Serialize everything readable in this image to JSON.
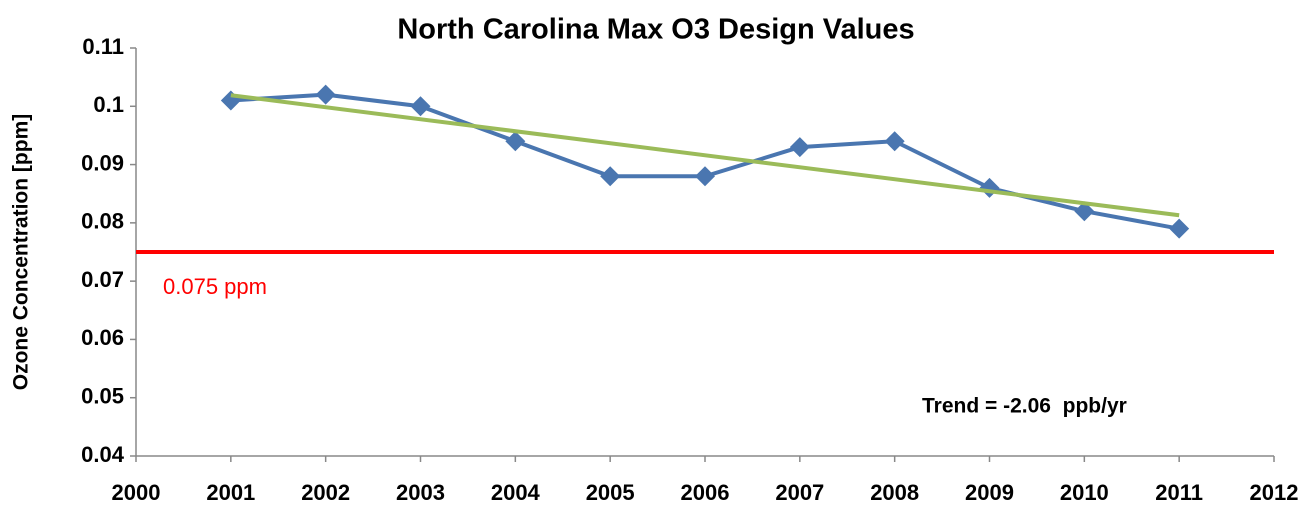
{
  "chart_data": {
    "type": "line",
    "title": "North Carolina Max O3 Design Values",
    "y_label": "Ozone Concentration [ppm]",
    "x": [
      2001,
      2002,
      2003,
      2004,
      2005,
      2006,
      2007,
      2008,
      2009,
      2010,
      2011
    ],
    "series": [
      {
        "color": "#4a76b0",
        "values": [
          0.101,
          0.102,
          0.1,
          0.094,
          0.088,
          0.088,
          0.093,
          0.094,
          0.086,
          0.082,
          0.079
        ]
      }
    ],
    "trend_line": {
      "color": "#9bbb59",
      "x": [
        2001,
        2011
      ],
      "values": [
        0.1019,
        0.0813
      ]
    },
    "reference_line": {
      "color": "#ff0000",
      "value": 0.075,
      "label": "0.075 ppm"
    },
    "annotation": "Trend = -2.06  ppb/yr",
    "xlim": [
      2000,
      2012
    ],
    "xticks": [
      2000,
      2001,
      2002,
      2003,
      2004,
      2005,
      2006,
      2007,
      2008,
      2009,
      2010,
      2011,
      2012
    ],
    "ylim": [
      0.04,
      0.11
    ],
    "yticks": [
      0.04,
      0.05,
      0.06,
      0.07,
      0.08,
      0.09,
      0.1,
      0.11
    ],
    "grid": false
  }
}
